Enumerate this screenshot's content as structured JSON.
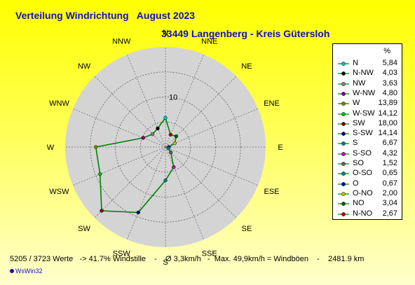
{
  "title": "Verteilung Windrichtung   August 2023",
  "subtitle": "33449 Langenberg - Kreis Gütersloh",
  "chart_data": {
    "type": "radar",
    "directions": [
      "N",
      "NNO",
      "NO",
      "ONO",
      "O",
      "OSO",
      "SO",
      "SSO",
      "S",
      "SSW",
      "SW",
      "WSW",
      "W",
      "WNW",
      "NW",
      "NNW"
    ],
    "axis_labels": [
      "N",
      "NNE",
      "NE",
      "ENE",
      "E",
      "ESE",
      "SE",
      "SSE",
      "S",
      "SSW",
      "SW",
      "WSW",
      "W",
      "WNW",
      "NW",
      "NNW"
    ],
    "values": [
      5.84,
      2.67,
      3.04,
      2.0,
      0.67,
      0.65,
      1.52,
      4.32,
      6.67,
      14.14,
      18.0,
      14.12,
      13.89,
      4.8,
      3.63,
      4.03
    ],
    "colors": [
      "#00c0c0",
      "#c00000",
      "#006000",
      "#c0c000",
      "#0000c0",
      "#008080",
      "#606060",
      "#c000c0",
      "#008080",
      "#000080",
      "#800000",
      "#00c000",
      "#808000",
      "#800080",
      "#808080",
      "#000000"
    ],
    "rmax": 20,
    "ring_step": 5,
    "ring_label": "10",
    "ring_label_value": 10,
    "line_color": "#008000",
    "legend_header": "%",
    "legend": [
      {
        "name": "N",
        "value": "5,84",
        "color": "#00c0c0"
      },
      {
        "name": "N-NW",
        "value": "4,03",
        "color": "#000000"
      },
      {
        "name": "NW",
        "value": "3,63",
        "color": "#808080"
      },
      {
        "name": "W-NW",
        "value": "4,80",
        "color": "#800080"
      },
      {
        "name": "W",
        "value": "13,89",
        "color": "#808000"
      },
      {
        "name": "W-SW",
        "value": "14,12",
        "color": "#00c000"
      },
      {
        "name": "SW",
        "value": "18,00",
        "color": "#800000"
      },
      {
        "name": "S-SW",
        "value": "14,14",
        "color": "#000080"
      },
      {
        "name": "S",
        "value": "6,67",
        "color": "#008080"
      },
      {
        "name": "S-SO",
        "value": "4,32",
        "color": "#c000c0"
      },
      {
        "name": "SO",
        "value": "1,52",
        "color": "#606060"
      },
      {
        "name": "O-SO",
        "value": "0,65",
        "color": "#008080"
      },
      {
        "name": "O",
        "value": "0,67",
        "color": "#0000c0"
      },
      {
        "name": "O-NO",
        "value": "2,00",
        "color": "#c0c000"
      },
      {
        "name": "NO",
        "value": "3,04",
        "color": "#006000"
      },
      {
        "name": "N-NO",
        "value": "2,67",
        "color": "#c00000"
      }
    ]
  },
  "footer": "5205 / 3723 Werte   -> 41.7% Windstille    -    Ø 3,3km/h   -  Max. 49,9km/h = Windböen    -    2481.9 km",
  "brand": "WsWin32"
}
